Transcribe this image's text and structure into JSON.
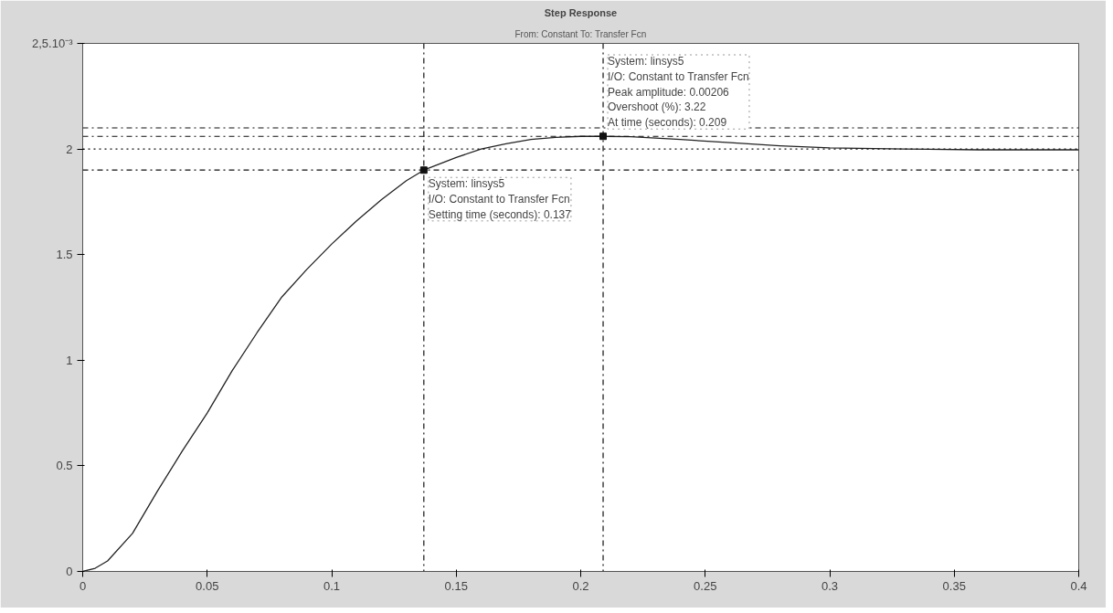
{
  "chart_data": {
    "type": "line",
    "title": "Step Response",
    "subtitle": "From: Constant To: Transfer Fcn",
    "xlim": [
      0,
      0.4
    ],
    "xticks": [
      0,
      0.05,
      0.1,
      0.15,
      0.2,
      0.25,
      0.3,
      0.35,
      0.4
    ],
    "ylim": [
      0,
      2.5
    ],
    "yticks": [
      0,
      0.5,
      1,
      1.5,
      2,
      {
        "value": 2.5,
        "label": "2,5.10⁻³"
      }
    ],
    "grid": false,
    "series": [
      {
        "color": "#222222",
        "x": [
          0,
          0.005,
          0.01,
          0.02,
          0.03,
          0.04,
          0.05,
          0.06,
          0.07,
          0.08,
          0.09,
          0.1,
          0.11,
          0.12,
          0.13,
          0.137,
          0.15,
          0.16,
          0.17,
          0.18,
          0.19,
          0.2,
          0.209,
          0.22,
          0.24,
          0.26,
          0.28,
          0.3,
          0.33,
          0.36,
          0.4
        ],
        "values": [
          0,
          0.015,
          0.05,
          0.18,
          0.38,
          0.57,
          0.75,
          0.95,
          1.13,
          1.3,
          1.43,
          1.55,
          1.66,
          1.76,
          1.85,
          1.9,
          1.96,
          2.0,
          2.025,
          2.045,
          2.055,
          2.06,
          2.06,
          2.058,
          2.045,
          2.03,
          2.015,
          2.005,
          2.0,
          1.996,
          1.996
        ]
      },
      {
        "type": "scatter",
        "color": "#111111",
        "marker": "square",
        "x": [
          0.137,
          0.209
        ],
        "values": [
          1.9,
          2.06
        ]
      }
    ],
    "ref_lines": [
      {
        "axis": "y",
        "value": 2.1,
        "line_style": "dashdot",
        "color": "#111111"
      },
      {
        "axis": "y",
        "value": 2.06,
        "line_style": "dashdot",
        "color": "#111111"
      },
      {
        "axis": "y",
        "value": 2.0,
        "line_style": "dotted",
        "color": "#111111"
      },
      {
        "axis": "y",
        "value": 1.9,
        "line_style": "dashdot",
        "color": "#111111"
      },
      {
        "axis": "x",
        "value": 0.137,
        "line_style": "dashdot",
        "color": "#111111"
      },
      {
        "axis": "x",
        "value": 0.209,
        "line_style": "dashdot",
        "color": "#111111"
      }
    ],
    "annotations": [
      {
        "text": "System: linsys5\nI/O: Constant to Transfer Fcn\nSetting time (seconds): 0.137",
        "x": 0.137,
        "y": 1.9
      },
      {
        "text": "System: linsys5\nI/O: Constant to Transfer Fcn\nPeak amplitude: 0.00206\nOvershoot (%): 3.22\nAt time (seconds): 0.209",
        "x": 0.209,
        "y": 2.06
      }
    ]
  }
}
